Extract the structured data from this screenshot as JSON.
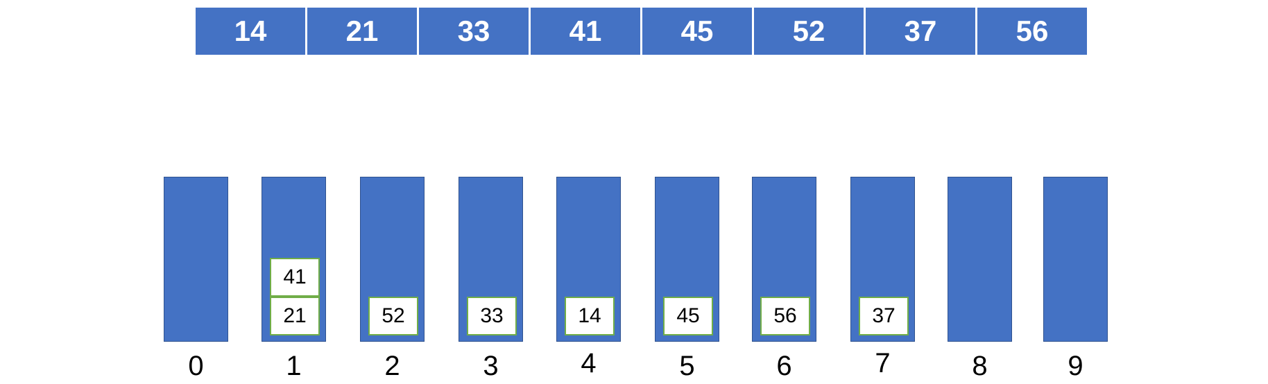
{
  "array": {
    "values": [
      "14",
      "21",
      "33",
      "41",
      "45",
      "52",
      "37",
      "56"
    ]
  },
  "buckets": [
    {
      "label": "0",
      "items": []
    },
    {
      "label": "1",
      "items": [
        "41",
        "21"
      ]
    },
    {
      "label": "2",
      "items": [
        "52"
      ]
    },
    {
      "label": "3",
      "items": [
        "33"
      ]
    },
    {
      "label": "4",
      "items": [
        "14"
      ]
    },
    {
      "label": "5",
      "items": [
        "45"
      ]
    },
    {
      "label": "6",
      "items": [
        "56"
      ]
    },
    {
      "label": "7",
      "items": [
        "37"
      ]
    },
    {
      "label": "8",
      "items": []
    },
    {
      "label": "9",
      "items": []
    }
  ],
  "colors": {
    "cell_fill": "#4472C4",
    "bucket_border": "#2F528F",
    "item_border": "#70AD47",
    "text_light": "#ffffff",
    "text_dark": "#000000"
  }
}
